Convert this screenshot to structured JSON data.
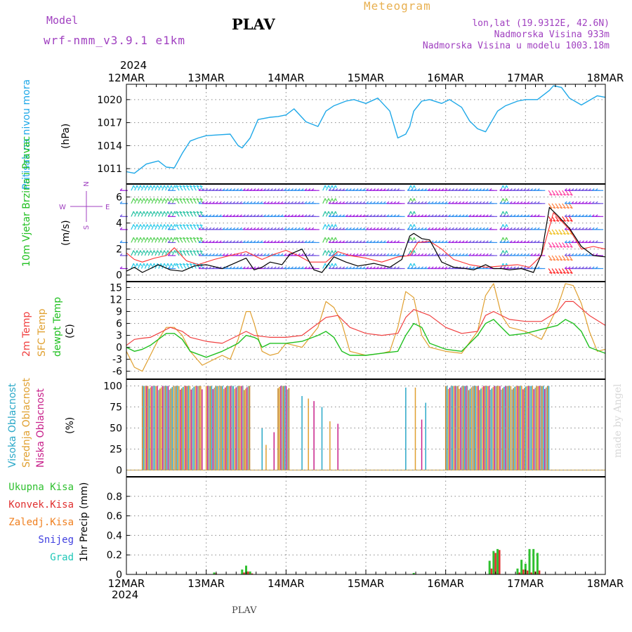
{
  "header": {
    "model_label": "Model",
    "model_name": "wrf-nmm_v3.9.1 e1km",
    "station": "PLAV",
    "meteogram_title": "Meteogram",
    "coords": "lon,lat (19.9312E, 42.6N)",
    "altitude": "Nadmorska Visina 933m",
    "model_altitude": "Nadmorska Visina u modelu 1003.18m"
  },
  "footer": {
    "station": "PLAV",
    "watermark": "made by Angel"
  },
  "colors": {
    "pressure": "#1ea8e8",
    "temp2m": "#f04040",
    "sfc_temp": "#e0a030",
    "dewpt": "#20c020",
    "wind_speed": "#000000",
    "wind_gust": "#ff3030",
    "purple": "#a040c0",
    "high_cloud": "#2aa8c8",
    "mid_cloud": "#e0a030",
    "low_cloud": "#c8208a",
    "total_precip": "#30c030",
    "conv_precip": "#e03030",
    "frozen_precip": "#f08020",
    "snow": "#4040e0",
    "hail": "#20c8b8"
  },
  "time_axis": {
    "year": "2024",
    "days": [
      "12MAR",
      "13MAR",
      "14MAR",
      "15MAR",
      "16MAR",
      "17MAR",
      "18MAR"
    ]
  },
  "chart_data": [
    {
      "type": "line",
      "panel": "pressure",
      "ylabel_left": "Pritisak na nivou mora",
      "ylabel_unit": "(hPa)",
      "ylim": [
        1009,
        1022
      ],
      "yticks": [
        "1011",
        "1014",
        "1017",
        "1020"
      ],
      "grid": true,
      "series": [
        {
          "x": [
            0,
            0.1,
            0.25,
            0.4,
            0.5,
            0.6,
            0.7,
            0.8,
            0.9,
            1.0,
            1.15,
            1.3,
            1.4,
            1.45,
            1.55,
            1.65,
            1.8,
            1.9,
            2.0,
            2.1,
            2.25,
            2.4,
            2.5,
            2.6,
            2.75,
            2.85,
            3.0,
            3.15,
            3.3,
            3.4,
            3.5,
            3.55,
            3.6,
            3.7,
            3.8,
            3.95,
            4.05,
            4.2,
            4.3,
            4.4,
            4.5,
            4.65,
            4.75,
            4.9,
            5.0,
            5.15,
            5.3,
            5.35,
            5.45,
            5.55,
            5.7,
            5.9,
            6.0
          ],
          "y": [
            1010.6,
            1010.4,
            1011.6,
            1012,
            1011.2,
            1011.1,
            1013,
            1014.6,
            1015,
            1015.3,
            1015.4,
            1015.5,
            1014,
            1013.7,
            1015,
            1017.4,
            1017.7,
            1017.8,
            1018,
            1018.8,
            1017.1,
            1016.5,
            1018.5,
            1019.2,
            1019.8,
            1020,
            1019.5,
            1020.2,
            1018.5,
            1015,
            1015.5,
            1016.5,
            1018.5,
            1019.8,
            1020,
            1019.5,
            1020,
            1019,
            1017.2,
            1016.2,
            1015.8,
            1018.5,
            1019.2,
            1019.8,
            1020,
            1020,
            1021.2,
            1021.8,
            1021.6,
            1020.2,
            1019.3,
            1020.5,
            1020.3
          ]
        }
      ]
    },
    {
      "type": "line",
      "panel": "wind",
      "ylabel_left": "10m Vjetar Brzina i Pravac",
      "ylabel_unit": "(m/s)",
      "compass": {
        "n": "N",
        "w": "W",
        "e": "E",
        "s": "S"
      },
      "ylim": [
        -0.5,
        7
      ],
      "yticks": [
        "0",
        "2",
        "4",
        "6"
      ],
      "grid": true,
      "series": [
        {
          "name": "speed",
          "x": [
            0,
            0.1,
            0.2,
            0.3,
            0.4,
            0.55,
            0.7,
            0.85,
            1.0,
            1.2,
            1.35,
            1.5,
            1.6,
            1.7,
            1.8,
            1.95,
            2.05,
            2.2,
            2.35,
            2.45,
            2.6,
            2.75,
            2.9,
            3.1,
            3.3,
            3.45,
            3.55,
            3.6,
            3.7,
            3.8,
            3.95,
            4.1,
            4.25,
            4.35,
            4.5,
            4.6,
            4.7,
            4.8,
            4.95,
            5.1,
            5.2,
            5.3,
            5.4,
            5.55,
            5.7,
            5.85,
            6.0
          ],
          "y": [
            0.3,
            0.6,
            0.2,
            0.5,
            0.8,
            0.4,
            0.3,
            0.7,
            0.8,
            0.5,
            0.9,
            1.3,
            0.4,
            0.6,
            1.0,
            0.8,
            1.6,
            2.0,
            0.4,
            0.2,
            1.4,
            1.0,
            0.7,
            0.9,
            0.6,
            1.2,
            3.0,
            3.2,
            2.8,
            2.7,
            1.0,
            0.6,
            0.5,
            0.4,
            0.8,
            0.5,
            0.5,
            0.4,
            0.5,
            0.2,
            1.6,
            5.2,
            4.6,
            3.6,
            2.2,
            1.5,
            1.4
          ]
        },
        {
          "name": "gust",
          "x": [
            0,
            0.1,
            0.2,
            0.35,
            0.5,
            0.6,
            0.75,
            0.9,
            1.1,
            1.3,
            1.5,
            1.7,
            1.85,
            2.0,
            2.15,
            2.3,
            2.5,
            2.65,
            2.8,
            3.0,
            3.2,
            3.4,
            3.55,
            3.65,
            3.8,
            3.95,
            4.1,
            4.3,
            4.5,
            4.7,
            4.9,
            5.05,
            5.2,
            5.35,
            5.55,
            5.7,
            5.85,
            6.0
          ],
          "y": [
            1.7,
            1.2,
            1.0,
            1.3,
            1.5,
            2.1,
            1.1,
            0.8,
            1.2,
            1.5,
            1.8,
            1.2,
            1.6,
            1.9,
            1.5,
            1.0,
            1.0,
            1.8,
            1.5,
            1.3,
            1.0,
            1.4,
            1.5,
            2.5,
            2.6,
            2.0,
            1.2,
            0.8,
            0.6,
            0.7,
            0.8,
            0.6,
            1.5,
            4.8,
            3.5,
            2.0,
            2.2,
            2.0
          ]
        }
      ]
    },
    {
      "type": "line",
      "panel": "temperature",
      "ylabel_red": "2m Temp",
      "ylabel_orange": "SFC Temp",
      "ylabel_green": "dewpt Temp",
      "ylabel_unit": "(C)",
      "ylim": [
        -8,
        16.5
      ],
      "yticks": [
        "-6",
        "-3",
        "0",
        "3",
        "6",
        "9",
        "12",
        "15"
      ],
      "grid": true,
      "series": [
        {
          "name": "2m Temp",
          "x": [
            0,
            0.1,
            0.2,
            0.3,
            0.4,
            0.5,
            0.55,
            0.7,
            0.8,
            1.0,
            1.2,
            1.4,
            1.5,
            1.6,
            1.8,
            2.0,
            2.2,
            2.4,
            2.5,
            2.65,
            2.8,
            3.0,
            3.2,
            3.4,
            3.5,
            3.6,
            3.8,
            4.0,
            4.2,
            4.4,
            4.5,
            4.6,
            4.8,
            5.0,
            5.2,
            5.4,
            5.5,
            5.6,
            5.8,
            6.0
          ],
          "y": [
            0.5,
            2.0,
            2.3,
            2.5,
            3.5,
            4.5,
            5.0,
            4.0,
            2.5,
            1.5,
            1.0,
            3.0,
            4.0,
            3.0,
            2.5,
            2.5,
            3.0,
            6.0,
            7.5,
            8.0,
            5.0,
            3.5,
            3.0,
            3.5,
            7.5,
            9.5,
            8.0,
            5.0,
            3.5,
            4.0,
            8.0,
            9.0,
            7.0,
            6.5,
            6.5,
            9.0,
            11.5,
            11.5,
            8.0,
            5.5
          ]
        },
        {
          "name": "SFC Temp",
          "x": [
            0,
            0.1,
            0.2,
            0.3,
            0.4,
            0.5,
            0.6,
            0.7,
            0.8,
            0.95,
            1.1,
            1.2,
            1.3,
            1.4,
            1.5,
            1.55,
            1.6,
            1.7,
            1.8,
            1.9,
            2.0,
            2.2,
            2.4,
            2.5,
            2.6,
            2.7,
            2.8,
            3.0,
            3.2,
            3.3,
            3.4,
            3.5,
            3.6,
            3.7,
            3.8,
            4.0,
            4.2,
            4.4,
            4.5,
            4.6,
            4.7,
            4.8,
            5.0,
            5.2,
            5.4,
            5.5,
            5.6,
            5.7,
            5.8,
            5.9,
            6.0
          ],
          "y": [
            -1.0,
            -5.0,
            -6.0,
            -2.0,
            2.0,
            5.0,
            5.0,
            3.0,
            -1.0,
            -4.5,
            -3.0,
            -2.0,
            -3.0,
            2.0,
            9.0,
            9.0,
            6.0,
            -1.0,
            -2.0,
            -1.5,
            1.0,
            0.0,
            5.0,
            11.5,
            10.0,
            6.0,
            -1.0,
            -2.0,
            -1.5,
            -1.0,
            5.0,
            14.0,
            12.5,
            3.0,
            0.0,
            -1.0,
            -1.5,
            4.0,
            13.0,
            16.0,
            8.0,
            5.0,
            4.0,
            2.0,
            10.0,
            16.0,
            15.5,
            11.0,
            4.0,
            -1.0,
            -0.5
          ]
        },
        {
          "name": "dewpt Temp",
          "x": [
            0,
            0.1,
            0.2,
            0.3,
            0.4,
            0.5,
            0.6,
            0.7,
            0.8,
            1.0,
            1.2,
            1.3,
            1.4,
            1.5,
            1.6,
            1.65,
            1.7,
            1.8,
            2.0,
            2.2,
            2.4,
            2.5,
            2.6,
            2.7,
            2.8,
            3.0,
            3.2,
            3.4,
            3.5,
            3.6,
            3.7,
            3.8,
            4.0,
            4.2,
            4.4,
            4.5,
            4.6,
            4.7,
            4.8,
            5.0,
            5.2,
            5.4,
            5.5,
            5.6,
            5.7,
            5.8,
            6.0
          ],
          "y": [
            0.0,
            -1.0,
            -0.5,
            0.5,
            2.0,
            3.5,
            3.5,
            2.0,
            -1.0,
            -2.5,
            -1.0,
            0.0,
            1.0,
            3.0,
            2.5,
            2.0,
            0.0,
            1.0,
            1.0,
            1.5,
            3.0,
            4.0,
            2.5,
            -1.0,
            -2.0,
            -2.0,
            -1.5,
            -1.0,
            3.0,
            6.0,
            5.0,
            1.0,
            -0.5,
            -1.0,
            3.0,
            6.0,
            7.0,
            5.0,
            3.0,
            3.5,
            4.5,
            5.5,
            7.0,
            6.0,
            4.0,
            0.0,
            -1.5
          ]
        }
      ]
    },
    {
      "type": "bar",
      "panel": "clouds",
      "ylabel_high": "Visoka Oblacnost",
      "ylabel_mid": "Srednja Oblacnost",
      "ylabel_low": "Niska Oblacnost",
      "ylabel_unit": "(%)",
      "ylim": [
        0,
        100
      ],
      "yticks": [
        "0",
        "25",
        "50",
        "75",
        "100"
      ],
      "grid": true,
      "full_cover_ranges": [
        [
          0.2,
          0.95
        ],
        [
          1.0,
          1.55
        ],
        [
          1.9,
          2.05
        ],
        [
          4.0,
          5.3
        ]
      ],
      "scattered": [
        {
          "x": 1.7,
          "v": 50
        },
        {
          "x": 1.75,
          "v": 30
        },
        {
          "x": 1.85,
          "v": 45
        },
        {
          "x": 2.2,
          "v": 88
        },
        {
          "x": 2.28,
          "v": 85
        },
        {
          "x": 2.35,
          "v": 82
        },
        {
          "x": 2.45,
          "v": 75
        },
        {
          "x": 2.55,
          "v": 58
        },
        {
          "x": 2.65,
          "v": 55
        },
        {
          "x": 3.5,
          "v": 98
        },
        {
          "x": 3.62,
          "v": 98
        },
        {
          "x": 3.7,
          "v": 60
        },
        {
          "x": 3.75,
          "v": 80
        }
      ]
    },
    {
      "type": "bar",
      "panel": "precipitation",
      "legend": [
        "Ukupna Kisa",
        "Konvek.Kisa",
        "Zaledj.Kisa",
        "Snijeg",
        "Grad"
      ],
      "ylabel": "1hr Precip",
      "ylabel_unit": "(mm)",
      "ylim": [
        0,
        1.0
      ],
      "yticks": [
        "0",
        "0.2",
        "0.4",
        "0.6",
        "0.8"
      ],
      "grid": true,
      "bars": [
        {
          "x": 1.1,
          "total": 0.02,
          "conv": 0.01
        },
        {
          "x": 1.45,
          "total": 0.05,
          "conv": 0.02
        },
        {
          "x": 1.5,
          "total": 0.09,
          "conv": 0.03
        },
        {
          "x": 1.55,
          "total": 0.03,
          "conv": 0.01
        },
        {
          "x": 3.6,
          "total": 0.015,
          "conv": 0.005
        },
        {
          "x": 4.55,
          "total": 0.14,
          "conv": 0.06
        },
        {
          "x": 4.6,
          "total": 0.24,
          "conv": 0.22
        },
        {
          "x": 4.65,
          "total": 0.26,
          "conv": 0.25
        },
        {
          "x": 4.9,
          "total": 0.06,
          "conv": 0.02
        },
        {
          "x": 4.95,
          "total": 0.15,
          "conv": 0.05
        },
        {
          "x": 5.0,
          "total": 0.11,
          "conv": 0.04
        },
        {
          "x": 5.05,
          "total": 0.26,
          "conv": 0.02
        },
        {
          "x": 5.1,
          "total": 0.26,
          "conv": 0.03
        },
        {
          "x": 5.15,
          "total": 0.22,
          "conv": 0.04
        }
      ]
    }
  ]
}
